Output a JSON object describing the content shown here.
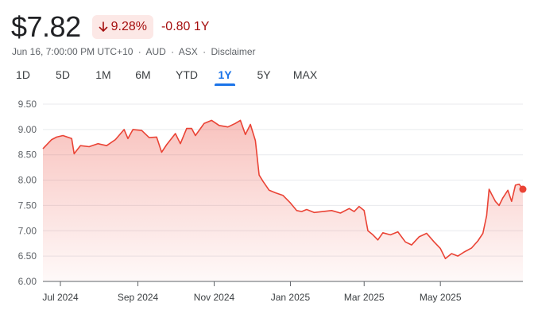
{
  "quote": {
    "price": "$7.82",
    "change_percent": "9.28%",
    "change_abs": "-0.80 1Y",
    "timestamp": "Jun 16, 7:00:00 PM UTC+10",
    "currency": "AUD",
    "exchange": "ASX",
    "disclaimer": "Disclaimer",
    "separator": "·",
    "down_color": "#a50e0e",
    "badge_bg": "#fce8e6"
  },
  "tabs": [
    {
      "label": "1D",
      "active": false
    },
    {
      "label": "5D",
      "active": false
    },
    {
      "label": "1M",
      "active": false
    },
    {
      "label": "6M",
      "active": false
    },
    {
      "label": "YTD",
      "active": false
    },
    {
      "label": "1Y",
      "active": true
    },
    {
      "label": "5Y",
      "active": false
    },
    {
      "label": "MAX",
      "active": false
    }
  ],
  "chart_data": {
    "type": "area",
    "title": "",
    "xlabel": "",
    "ylabel": "",
    "ylim": [
      6.0,
      9.5
    ],
    "y_ticks": [
      "9.50",
      "9.00",
      "8.50",
      "8.00",
      "7.50",
      "7.00",
      "6.50",
      "6.00"
    ],
    "x_ticks": [
      {
        "label": "Jul 2024",
        "date": "2024-07-01"
      },
      {
        "label": "Sep 2024",
        "date": "2024-09-01"
      },
      {
        "label": "Nov 2024",
        "date": "2024-11-01"
      },
      {
        "label": "Jan 2025",
        "date": "2025-01-01"
      },
      {
        "label": "Mar 2025",
        "date": "2025-03-01"
      },
      {
        "label": "May 2025",
        "date": "2025-05-01"
      }
    ],
    "grid": true,
    "line_color": "#ea4335",
    "series": [
      {
        "points": [
          [
            "2024-06-17",
            8.62
          ],
          [
            "2024-06-24",
            8.8
          ],
          [
            "2024-06-28",
            8.85
          ],
          [
            "2024-07-03",
            8.88
          ],
          [
            "2024-07-10",
            8.82
          ],
          [
            "2024-07-12",
            8.52
          ],
          [
            "2024-07-17",
            8.68
          ],
          [
            "2024-07-24",
            8.66
          ],
          [
            "2024-07-31",
            8.72
          ],
          [
            "2024-08-07",
            8.68
          ],
          [
            "2024-08-14",
            8.8
          ],
          [
            "2024-08-21",
            9.0
          ],
          [
            "2024-08-24",
            8.82
          ],
          [
            "2024-08-28",
            9.0
          ],
          [
            "2024-09-04",
            8.98
          ],
          [
            "2024-09-10",
            8.84
          ],
          [
            "2024-09-16",
            8.85
          ],
          [
            "2024-09-20",
            8.55
          ],
          [
            "2024-09-24",
            8.7
          ],
          [
            "2024-10-01",
            8.92
          ],
          [
            "2024-10-05",
            8.72
          ],
          [
            "2024-10-10",
            9.02
          ],
          [
            "2024-10-14",
            9.02
          ],
          [
            "2024-10-17",
            8.88
          ],
          [
            "2024-10-24",
            9.12
          ],
          [
            "2024-10-30",
            9.18
          ],
          [
            "2024-11-05",
            9.08
          ],
          [
            "2024-11-12",
            9.05
          ],
          [
            "2024-11-18",
            9.12
          ],
          [
            "2024-11-22",
            9.18
          ],
          [
            "2024-11-26",
            8.9
          ],
          [
            "2024-11-30",
            9.1
          ],
          [
            "2024-12-04",
            8.78
          ],
          [
            "2024-12-07",
            8.1
          ],
          [
            "2024-12-10",
            7.98
          ],
          [
            "2024-12-15",
            7.8
          ],
          [
            "2024-12-20",
            7.75
          ],
          [
            "2024-12-26",
            7.7
          ],
          [
            "2025-01-01",
            7.55
          ],
          [
            "2025-01-06",
            7.4
          ],
          [
            "2025-01-10",
            7.38
          ],
          [
            "2025-01-14",
            7.42
          ],
          [
            "2025-01-20",
            7.36
          ],
          [
            "2025-01-27",
            7.38
          ],
          [
            "2025-02-03",
            7.4
          ],
          [
            "2025-02-10",
            7.35
          ],
          [
            "2025-02-17",
            7.44
          ],
          [
            "2025-02-21",
            7.38
          ],
          [
            "2025-02-25",
            7.48
          ],
          [
            "2025-03-01",
            7.4
          ],
          [
            "2025-03-04",
            7.0
          ],
          [
            "2025-03-08",
            6.92
          ],
          [
            "2025-03-12",
            6.82
          ],
          [
            "2025-03-16",
            6.96
          ],
          [
            "2025-03-22",
            6.92
          ],
          [
            "2025-03-28",
            6.98
          ],
          [
            "2025-04-03",
            6.78
          ],
          [
            "2025-04-08",
            6.72
          ],
          [
            "2025-04-14",
            6.88
          ],
          [
            "2025-04-20",
            6.95
          ],
          [
            "2025-04-26",
            6.78
          ],
          [
            "2025-05-01",
            6.65
          ],
          [
            "2025-05-05",
            6.45
          ],
          [
            "2025-05-10",
            6.55
          ],
          [
            "2025-05-15",
            6.5
          ],
          [
            "2025-05-20",
            6.58
          ],
          [
            "2025-05-26",
            6.66
          ],
          [
            "2025-05-31",
            6.8
          ],
          [
            "2025-06-04",
            6.95
          ],
          [
            "2025-06-07",
            7.3
          ],
          [
            "2025-06-09",
            7.82
          ],
          [
            "2025-06-11",
            7.72
          ],
          [
            "2025-06-14",
            7.58
          ],
          [
            "2025-06-17",
            7.5
          ],
          [
            "2025-06-20",
            7.65
          ],
          [
            "2025-06-24",
            7.8
          ],
          [
            "2025-06-27",
            7.58
          ],
          [
            "2025-06-30",
            7.9
          ],
          [
            "2025-07-03",
            7.92
          ],
          [
            "2025-07-06",
            7.82
          ]
        ]
      }
    ]
  }
}
